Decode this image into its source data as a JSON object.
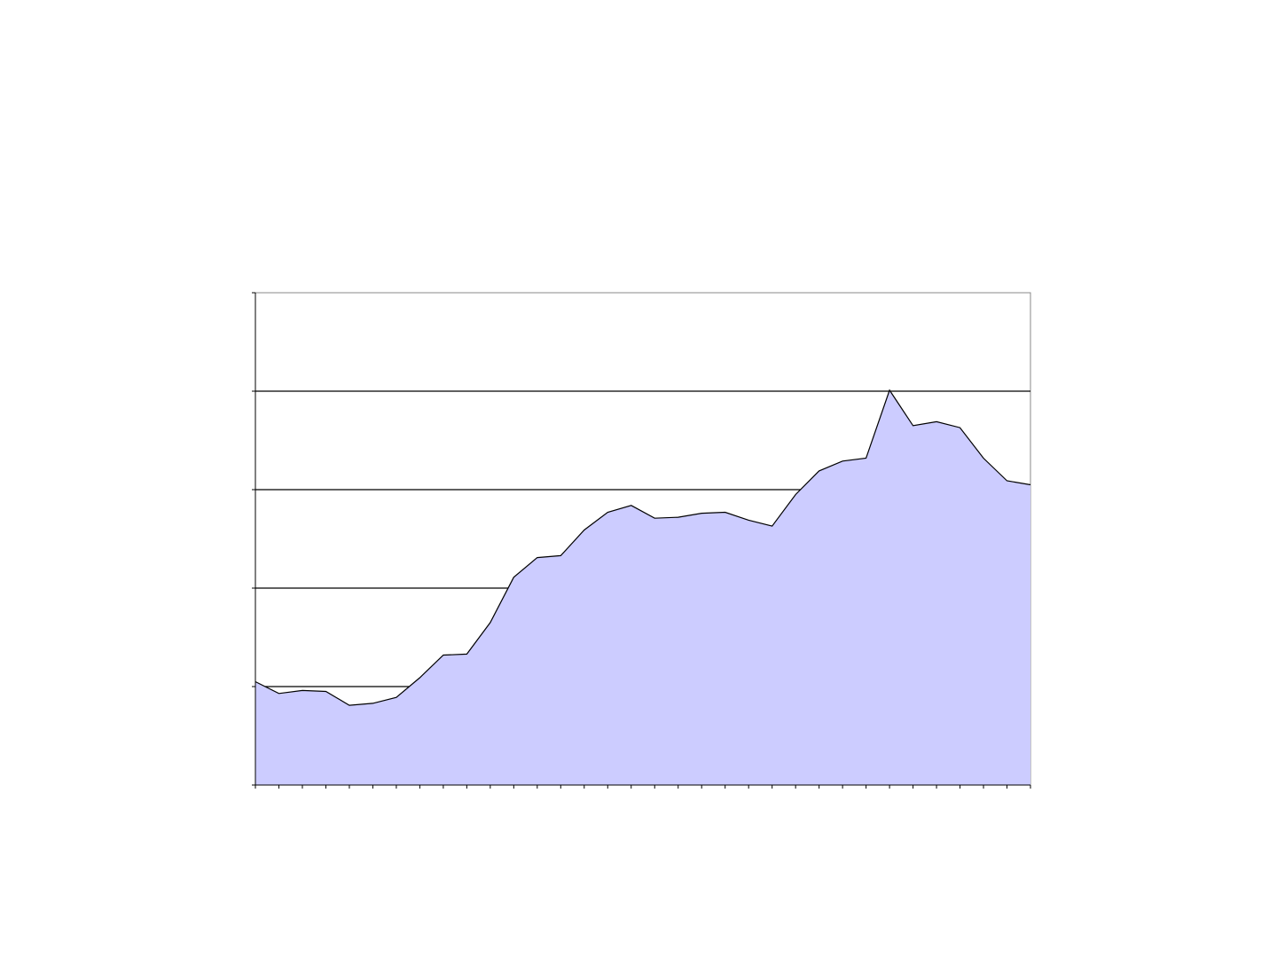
{
  "chart_data": {
    "type": "area",
    "title": "",
    "xlabel": "",
    "ylabel": "",
    "ylim": [
      0,
      5
    ],
    "grid": true,
    "legend": "none",
    "fill_color": "#ccccff",
    "line_color": "#000000",
    "point_count": 34,
    "values": [
      1.05,
      0.93,
      0.96,
      0.95,
      0.81,
      0.83,
      0.89,
      1.09,
      1.32,
      1.33,
      1.65,
      2.11,
      2.31,
      2.33,
      2.59,
      2.77,
      2.84,
      2.71,
      2.72,
      2.76,
      2.77,
      2.69,
      2.63,
      2.95,
      3.19,
      3.29,
      3.32,
      4.01,
      3.65,
      3.69,
      3.63,
      3.32,
      3.09,
      3.05
    ]
  }
}
